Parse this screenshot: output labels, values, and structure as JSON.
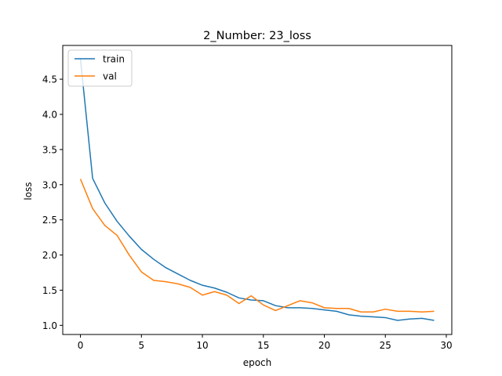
{
  "chart_data": {
    "type": "line",
    "title": "2_Number: 23_loss",
    "xlabel": "epoch",
    "ylabel": "loss",
    "xlim": [
      -1.45,
      30.45
    ],
    "ylim": [
      0.87,
      4.98
    ],
    "xticks": [
      0,
      5,
      10,
      15,
      20,
      25,
      30
    ],
    "yticks": [
      1.0,
      1.5,
      2.0,
      2.5,
      3.0,
      3.5,
      4.0,
      4.5
    ],
    "ytick_labels": [
      "1.0",
      "1.5",
      "2.0",
      "2.5",
      "3.0",
      "3.5",
      "4.0",
      "4.5"
    ],
    "grid": false,
    "legend_position": "upper-left",
    "x": [
      0,
      1,
      2,
      3,
      4,
      5,
      6,
      7,
      8,
      9,
      10,
      11,
      12,
      13,
      14,
      15,
      16,
      17,
      18,
      19,
      20,
      21,
      22,
      23,
      24,
      25,
      26,
      27,
      28,
      29
    ],
    "series": [
      {
        "name": "train",
        "color": "#1f77b4",
        "values": [
          4.79,
          3.09,
          2.74,
          2.48,
          2.27,
          2.08,
          1.94,
          1.82,
          1.73,
          1.64,
          1.57,
          1.53,
          1.47,
          1.39,
          1.36,
          1.35,
          1.28,
          1.25,
          1.25,
          1.24,
          1.22,
          1.2,
          1.15,
          1.13,
          1.12,
          1.11,
          1.07,
          1.09,
          1.1,
          1.07
        ]
      },
      {
        "name": "val",
        "color": "#ff7f0e",
        "values": [
          3.08,
          2.66,
          2.42,
          2.28,
          2.0,
          1.76,
          1.64,
          1.62,
          1.59,
          1.54,
          1.43,
          1.48,
          1.43,
          1.31,
          1.42,
          1.29,
          1.21,
          1.28,
          1.35,
          1.32,
          1.25,
          1.24,
          1.24,
          1.19,
          1.19,
          1.23,
          1.2,
          1.2,
          1.19,
          1.2
        ]
      }
    ]
  }
}
